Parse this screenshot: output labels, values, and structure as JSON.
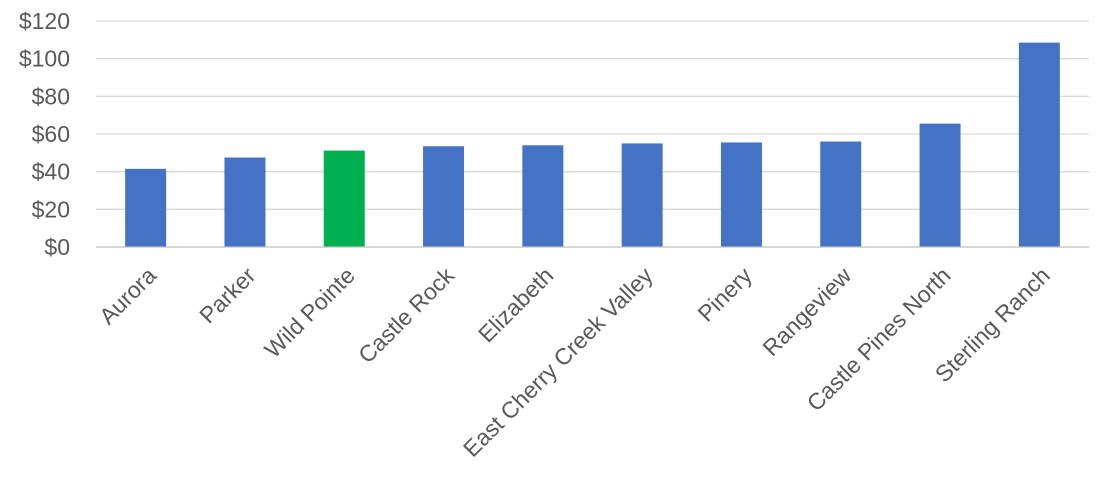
{
  "chart_data": {
    "type": "bar",
    "categories": [
      "Aurora",
      "Parker",
      "Wild Pointe",
      "Castle Rock",
      "Elizabeth",
      "East Cherry Creek Valley",
      "Pinery",
      "Rangeview",
      "Castle Pines North",
      "Sterling Ranch"
    ],
    "values": [
      41.5,
      47.5,
      51.2,
      53.5,
      54.0,
      55.0,
      55.5,
      56.0,
      65.5,
      108.5
    ],
    "y_tick_labels": [
      "$0",
      "$20",
      "$40",
      "$60",
      "$80",
      "$100",
      "$120"
    ],
    "ylim": [
      0,
      120
    ],
    "y_step": 20,
    "grid": true,
    "legend": "none",
    "bar_color": "#4472c4",
    "highlight_color": "#00b050",
    "highlight_index": 2,
    "title": "",
    "xlabel": "",
    "ylabel": ""
  }
}
